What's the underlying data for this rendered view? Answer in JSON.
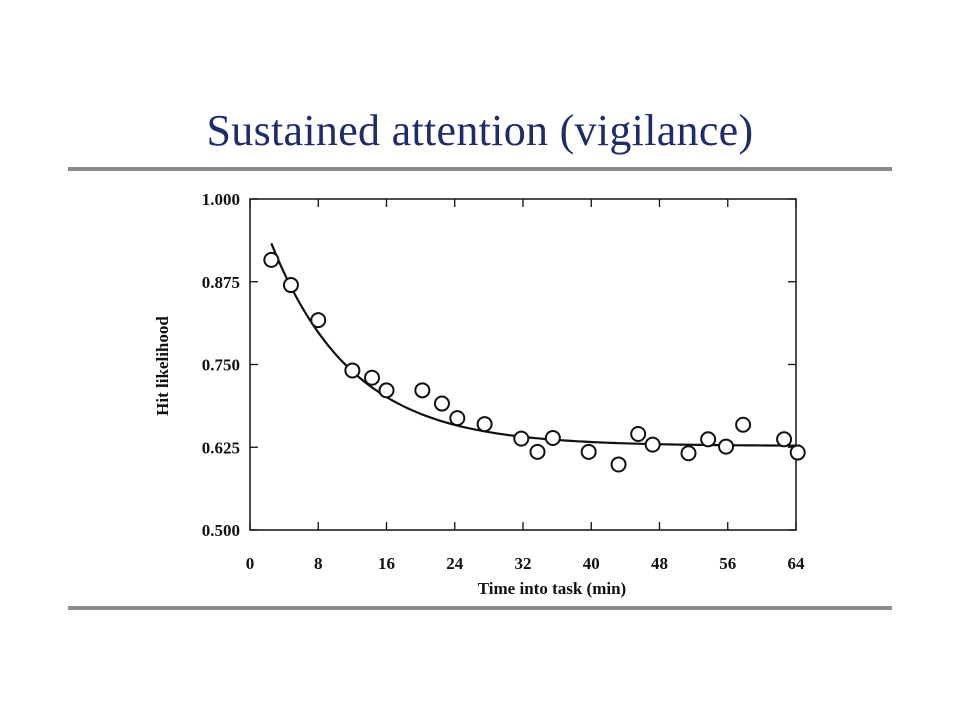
{
  "slide": {
    "title": "Sustained attention (vigilance)"
  },
  "colors": {
    "title": "#1f2c6b",
    "rule": "#8c8c8c",
    "ink": "#111111"
  },
  "chart_data": {
    "type": "scatter",
    "title": "",
    "xlabel": "Time into task (min)",
    "ylabel": "Hit likelihood",
    "xlim": [
      0,
      64
    ],
    "ylim": [
      0.5,
      1.0
    ],
    "x_ticks": [
      "0",
      "8",
      "16",
      "24",
      "32",
      "40",
      "48",
      "56",
      "64"
    ],
    "y_ticks": [
      "1.000",
      "0.875",
      "0.750",
      "0.625",
      "0.500"
    ],
    "grid": false,
    "series": [
      {
        "marker": "open-circle",
        "x": [
          2.5,
          4.8,
          8.0,
          12.0,
          14.3,
          16.0,
          20.2,
          22.5,
          24.3,
          27.5,
          31.8,
          33.7,
          35.5,
          39.7,
          43.2,
          45.5,
          47.2,
          51.4,
          53.7,
          55.8,
          57.8,
          62.6,
          64.2
        ],
        "y": [
          0.908,
          0.87,
          0.817,
          0.741,
          0.73,
          0.711,
          0.711,
          0.691,
          0.669,
          0.66,
          0.638,
          0.618,
          0.639,
          0.618,
          0.599,
          0.645,
          0.629,
          0.616,
          0.637,
          0.626,
          0.659,
          0.637,
          0.617
        ]
      }
    ],
    "fit": {
      "type": "exponential-decay",
      "x_start": 2.5,
      "x_end": 64.5,
      "asymptote": 0.627,
      "amplitude": 0.306,
      "tau": 9.5
    }
  }
}
